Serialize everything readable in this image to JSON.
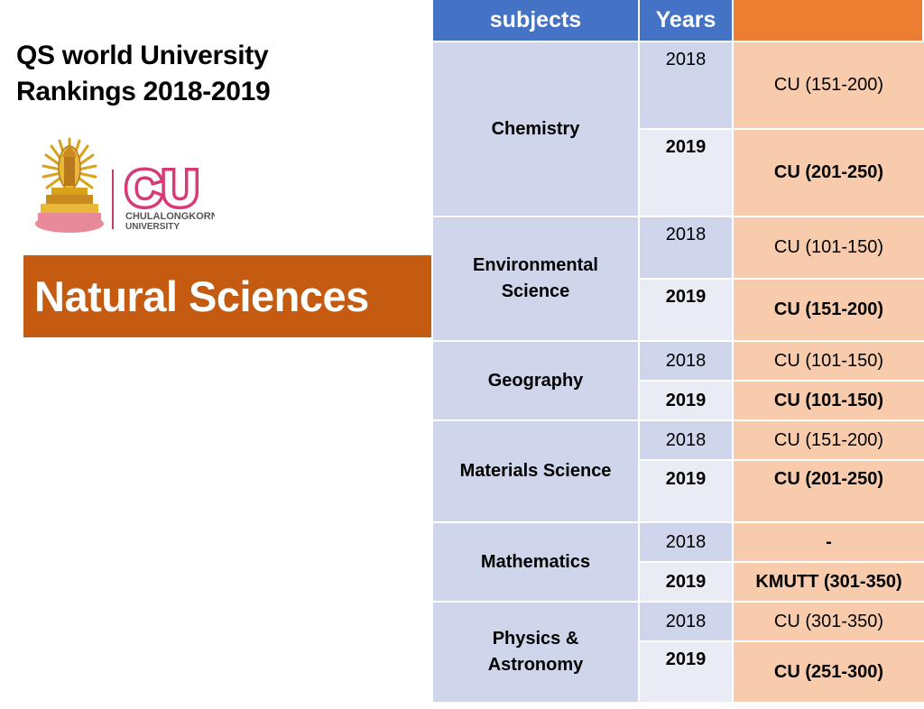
{
  "title": {
    "line1": "QS world University",
    "line2": "Rankings 2018-2019"
  },
  "logo": {
    "wordmark": "CU",
    "line1": "CHULALONGKORN",
    "line2": "UNIVERSITY"
  },
  "banner": "Natural Sciences",
  "table": {
    "headers": [
      "subjects",
      "Years",
      ""
    ],
    "rows": [
      {
        "subject": "Chemistry",
        "y1": "2018",
        "r1": "CU (151-200)",
        "y2": "2019",
        "r2": "CU (201-250)"
      },
      {
        "subject": "Environmental Science",
        "y1": "2018",
        "r1": "CU (101-150)",
        "y2": "2019",
        "r2": "CU (151-200)"
      },
      {
        "subject": "Geography",
        "y1": "2018",
        "r1": "CU (101-150)",
        "y2": "2019",
        "r2": "CU (101-150)"
      },
      {
        "subject": "Materials Science",
        "y1": "2018",
        "r1": "CU (151-200)",
        "y2": "2019",
        "r2": "CU (201-250)"
      },
      {
        "subject": "Mathematics",
        "y1": "2018",
        "r1": "-",
        "y2": "2019",
        "r2": "KMUTT (301-350)"
      },
      {
        "subject": "Physics & Astronomy",
        "y1": "2018",
        "r1": "CU (301-350)",
        "y2": "2019",
        "r2": "CU (251-300)"
      }
    ]
  },
  "colors": {
    "header_blue": "#4472c4",
    "header_orange": "#ed7d31",
    "subject_bg": "#cfd5ea",
    "rank_bg": "#f8cbad",
    "banner": "#c55a11"
  }
}
